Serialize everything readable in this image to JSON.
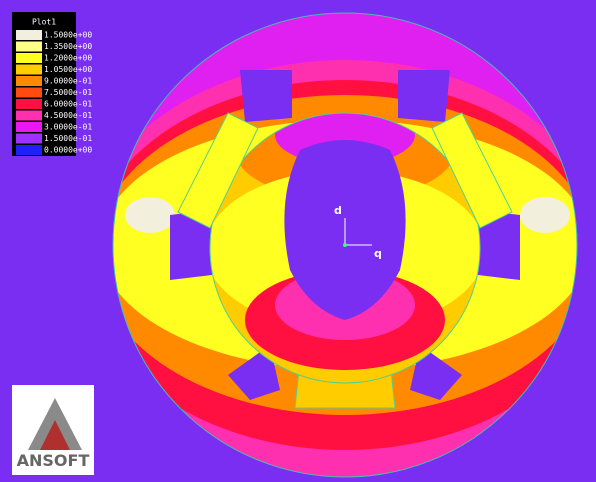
{
  "legend": {
    "title": "Plot1",
    "entries": [
      {
        "label": "1.5000e+00",
        "color": "#f2f0dc"
      },
      {
        "label": "1.3500e+00",
        "color": "#ffff88"
      },
      {
        "label": "1.2000e+00",
        "color": "#ffff22"
      },
      {
        "label": "1.0500e+00",
        "color": "#ffcc00"
      },
      {
        "label": "9.0000e-01",
        "color": "#ff8a00"
      },
      {
        "label": "7.5000e-01",
        "color": "#ff4a10"
      },
      {
        "label": "6.0000e-01",
        "color": "#ff1040"
      },
      {
        "label": "4.5000e-01",
        "color": "#ff30b0"
      },
      {
        "label": "3.0000e-01",
        "color": "#e818f0"
      },
      {
        "label": "1.5000e-01",
        "color": "#a030ff"
      },
      {
        "label": "0.0000e+00",
        "color": "#2020ff"
      }
    ]
  },
  "axes": {
    "d": "d",
    "q": "q"
  },
  "logo": "ANSOFT"
}
